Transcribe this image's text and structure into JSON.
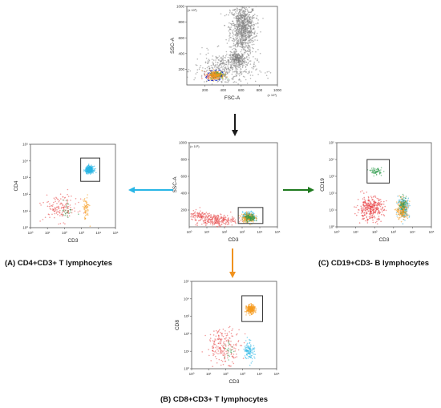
{
  "figure": {
    "captions": {
      "a": "(A)   CD4+CD3+ T lymphocytes",
      "b": "(B)   CD8+CD3+ T lymphocytes",
      "c": "(C)   CD19+CD3- B lymphocytes"
    }
  },
  "colors": {
    "arrow_down": "#1a1a1a",
    "arrow_left": "#29b6e6",
    "arrow_right": "#1f7a1f",
    "arrow_cd8": "#f0921e",
    "gate": "#333333",
    "fsc_gate": "#2233cc"
  },
  "chart_data": [
    {
      "id": "fsc_ssc",
      "type": "scatter",
      "xlabel": "FSC-A",
      "ylabel": "SSC-A",
      "x_multiplier": "(x 10³)",
      "y_multiplier": "(x 10³)",
      "xlim": [
        0,
        1000
      ],
      "ylim": [
        0,
        1000
      ],
      "xticks": [
        "200",
        "400",
        "600",
        "800",
        "1000"
      ],
      "yticks": [
        "200",
        "400",
        "600",
        "800",
        "1000"
      ],
      "xscale": "linear",
      "yscale": "linear",
      "series": [
        {
          "color": "#7f7f7f",
          "clusters": [
            {
              "cx": 620,
              "cy": 720,
              "sx": 70,
              "sy": 160,
              "n": 900
            },
            {
              "cx": 560,
              "cy": 330,
              "sx": 45,
              "sy": 40,
              "n": 230
            },
            {
              "cx": 420,
              "cy": 200,
              "sx": 170,
              "sy": 110,
              "n": 450
            }
          ]
        },
        {
          "color": "#e63c2c",
          "clusters": [
            {
              "cx": 300,
              "cy": 120,
              "sx": 40,
              "sy": 25,
              "n": 110
            }
          ]
        },
        {
          "color": "#28a843",
          "clusters": [
            {
              "cx": 340,
              "cy": 130,
              "sx": 40,
              "sy": 25,
              "n": 110
            }
          ]
        },
        {
          "color": "#f59a1d",
          "clusters": [
            {
              "cx": 320,
              "cy": 125,
              "sx": 45,
              "sy": 28,
              "n": 150
            }
          ]
        }
      ],
      "gate": {
        "shape": "polygon",
        "style": "dashed",
        "points": [
          [
            210,
            95
          ],
          [
            260,
            180
          ],
          [
            370,
            190
          ],
          [
            400,
            150
          ],
          [
            360,
            60
          ],
          [
            240,
            55
          ]
        ]
      }
    },
    {
      "id": "cd3_ssc",
      "type": "scatter",
      "xlabel": "CD3",
      "ylabel": "SSC-A",
      "y_multiplier": "(x 10³)",
      "xlim": [
        1,
        100000
      ],
      "ylim": [
        0,
        1000
      ],
      "xscale": "log",
      "yscale": "linear",
      "xticks": [
        "10⁰",
        "10¹",
        "10²",
        "10³",
        "10⁴",
        "10⁵"
      ],
      "yticks": [
        "200",
        "400",
        "600",
        "800",
        "1000"
      ],
      "series": [
        {
          "color": "#e84a4a",
          "clusters": [
            {
              "cx": 30,
              "cy": 80,
              "sx": 0.55,
              "sy": 35,
              "n": 260
            },
            {
              "cx": 3,
              "cy": 140,
              "sx": 0.35,
              "sy": 25,
              "n": 80
            }
          ]
        },
        {
          "color": "#29b6e6",
          "clusters": [
            {
              "cx": 2500,
              "cy": 120,
              "sx": 0.18,
              "sy": 28,
              "n": 180
            }
          ]
        },
        {
          "color": "#f59a1d",
          "clusters": [
            {
              "cx": 2200,
              "cy": 110,
              "sx": 0.18,
              "sy": 28,
              "n": 180
            }
          ]
        },
        {
          "color": "#2e9a4a",
          "clusters": [
            {
              "cx": 2800,
              "cy": 105,
              "sx": 0.15,
              "sy": 22,
              "n": 90
            }
          ]
        }
      ],
      "gate": {
        "shape": "rect",
        "style": "solid",
        "xlim": [
          600,
          15000
        ],
        "ylim": [
          40,
          230
        ]
      }
    },
    {
      "id": "cd3_cd4",
      "type": "scatter",
      "xlabel": "CD3",
      "ylabel": "CD4",
      "xlim": [
        1,
        100000
      ],
      "ylim": [
        1,
        100000
      ],
      "xscale": "log",
      "yscale": "log",
      "xticks": [
        "10⁰",
        "10¹",
        "10²",
        "10³",
        "10⁴",
        "10⁵"
      ],
      "yticks": [
        "10⁰",
        "10¹",
        "10²",
        "10³",
        "10⁴",
        "10⁵"
      ],
      "series": [
        {
          "color": "#29b6e6",
          "clusters": [
            {
              "cx": 3000,
              "cy": 3000,
              "sx": 0.12,
              "sy": 0.1,
              "n": 340
            }
          ]
        },
        {
          "color": "#e84a4a",
          "clusters": [
            {
              "cx": 60,
              "cy": 15,
              "sx": 0.5,
              "sy": 0.4,
              "n": 140
            }
          ]
        },
        {
          "color": "#f59a1d",
          "clusters": [
            {
              "cx": 1800,
              "cy": 14,
              "sx": 0.1,
              "sy": 0.35,
              "n": 60
            }
          ]
        },
        {
          "color": "#2e9a4a",
          "clusters": [
            {
              "cx": 150,
              "cy": 12,
              "sx": 0.15,
              "sy": 0.3,
              "n": 25
            }
          ]
        }
      ],
      "gate": {
        "shape": "rect",
        "style": "solid",
        "xlim": [
          900,
          12000
        ],
        "ylim": [
          600,
          15000
        ]
      }
    },
    {
      "id": "cd3_cd8",
      "type": "scatter",
      "xlabel": "CD3",
      "ylabel": "CD8",
      "xlim": [
        1,
        100000
      ],
      "ylim": [
        1,
        100000
      ],
      "xscale": "log",
      "yscale": "log",
      "xticks": [
        "10⁰",
        "10¹",
        "10²",
        "10³",
        "10⁴",
        "10⁵"
      ],
      "yticks": [
        "10⁰",
        "10¹",
        "10²",
        "10³",
        "10⁴",
        "10⁵"
      ],
      "series": [
        {
          "color": "#f59a1d",
          "clusters": [
            {
              "cx": 3000,
              "cy": 2500,
              "sx": 0.12,
              "sy": 0.12,
              "n": 280
            }
          ]
        },
        {
          "color": "#e84a4a",
          "clusters": [
            {
              "cx": 80,
              "cy": 20,
              "sx": 0.5,
              "sy": 0.5,
              "n": 200
            }
          ]
        },
        {
          "color": "#29b6e6",
          "clusters": [
            {
              "cx": 2500,
              "cy": 12,
              "sx": 0.15,
              "sy": 0.3,
              "n": 110
            }
          ]
        },
        {
          "color": "#2e9a4a",
          "clusters": [
            {
              "cx": 150,
              "cy": 10,
              "sx": 0.15,
              "sy": 0.3,
              "n": 20
            }
          ]
        }
      ],
      "gate": {
        "shape": "rect",
        "style": "solid",
        "xlim": [
          900,
          15000
        ],
        "ylim": [
          500,
          15000
        ]
      }
    },
    {
      "id": "cd3_cd19",
      "type": "scatter",
      "xlabel": "CD3",
      "ylabel": "CD19",
      "xlim": [
        1,
        100000
      ],
      "ylim": [
        1,
        100000
      ],
      "xscale": "log",
      "yscale": "log",
      "xticks": [
        "10⁰",
        "10¹",
        "10²",
        "10³",
        "10⁴",
        "10⁵"
      ],
      "yticks": [
        "10⁰",
        "10¹",
        "10²",
        "10³",
        "10⁴",
        "10⁵"
      ],
      "series": [
        {
          "color": "#e8383d",
          "clusters": [
            {
              "cx": 60,
              "cy": 12,
              "sx": 0.35,
              "sy": 0.35,
              "n": 320
            }
          ]
        },
        {
          "color": "#2aa7d8",
          "clusters": [
            {
              "cx": 3500,
              "cy": 15,
              "sx": 0.15,
              "sy": 0.3,
              "n": 160
            }
          ]
        },
        {
          "color": "#f59a1d",
          "clusters": [
            {
              "cx": 3000,
              "cy": 10,
              "sx": 0.15,
              "sy": 0.3,
              "n": 180
            }
          ]
        },
        {
          "color": "#2e9a4a",
          "clusters": [
            {
              "cx": 120,
              "cy": 2000,
              "sx": 0.15,
              "sy": 0.1,
              "n": 60
            },
            {
              "cx": 3200,
              "cy": 20,
              "sx": 0.12,
              "sy": 0.25,
              "n": 60
            }
          ]
        }
      ],
      "gate": {
        "shape": "rect",
        "style": "solid",
        "xlim": [
          40,
          600
        ],
        "ylim": [
          400,
          10000
        ]
      }
    }
  ]
}
